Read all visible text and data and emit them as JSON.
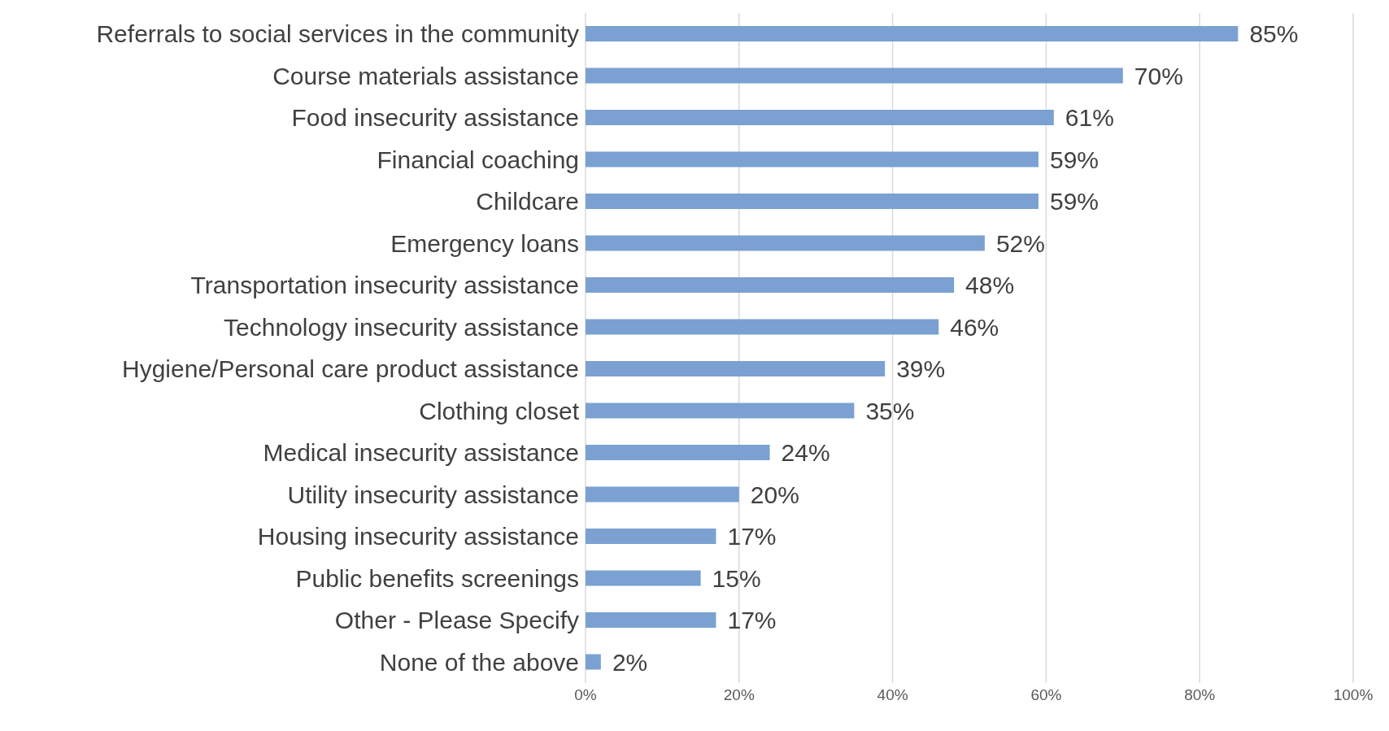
{
  "chart_data": {
    "type": "bar",
    "orientation": "horizontal",
    "categories": [
      "Referrals to social services in the community",
      "Course materials assistance",
      "Food insecurity assistance",
      "Financial coaching",
      "Childcare",
      "Emergency loans",
      "Transportation insecurity assistance",
      "Technology insecurity assistance",
      "Hygiene/Personal care product assistance",
      "Clothing closet",
      "Medical insecurity assistance",
      "Utility insecurity assistance",
      "Housing insecurity assistance",
      "Public benefits screenings",
      "Other - Please Specify",
      "None of the above"
    ],
    "values": [
      85,
      70,
      61,
      59,
      59,
      52,
      48,
      46,
      39,
      35,
      24,
      20,
      17,
      15,
      17,
      2
    ],
    "value_labels": [
      "85%",
      "70%",
      "61%",
      "59%",
      "59%",
      "52%",
      "48%",
      "46%",
      "39%",
      "35%",
      "24%",
      "20%",
      "17%",
      "15%",
      "17%",
      "2%"
    ],
    "color": "#7aa1d1",
    "xlim": [
      0,
      100
    ],
    "xticks": [
      {
        "value": 0,
        "label": "0%"
      },
      {
        "value": 20,
        "label": "20%"
      },
      {
        "value": 40,
        "label": "40%"
      },
      {
        "value": 60,
        "label": "60%"
      },
      {
        "value": 80,
        "label": "80%"
      },
      {
        "value": 100,
        "label": "100%"
      }
    ],
    "grid": "x"
  }
}
